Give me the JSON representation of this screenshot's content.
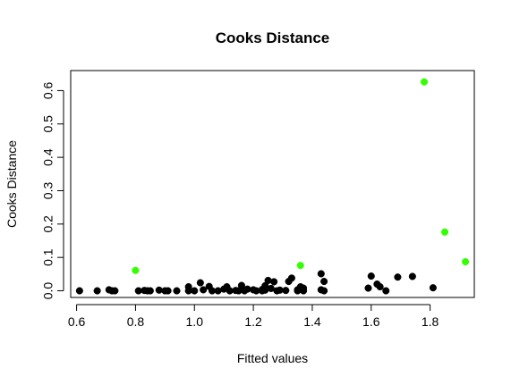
{
  "colors": {
    "normal_point": "#000000",
    "highlight_point": "#33ff00",
    "axis": "#000000",
    "background": "#ffffff"
  },
  "chart_data": {
    "type": "scatter",
    "title": "Cooks Distance",
    "xlabel": "Fitted values",
    "ylabel": "Cooks Distance",
    "xlim": [
      0.58,
      1.95
    ],
    "ylim": [
      -0.02,
      0.66
    ],
    "x_ticks": [
      0.6,
      0.8,
      1.0,
      1.2,
      1.4,
      1.6,
      1.8
    ],
    "x_tick_labels": [
      "0.6",
      "0.8",
      "1.0",
      "1.2",
      "1.4",
      "1.6",
      "1.8"
    ],
    "y_ticks": [
      0.0,
      0.1,
      0.2,
      0.3,
      0.4,
      0.5,
      0.6
    ],
    "y_tick_labels": [
      "0.0",
      "0.1",
      "0.2",
      "0.3",
      "0.4",
      "0.5",
      "0.6"
    ],
    "grid": false,
    "legend": "none",
    "series": [
      {
        "color": "#000000",
        "points": [
          [
            0.61,
            0.0
          ],
          [
            0.67,
            0.0
          ],
          [
            0.71,
            0.003
          ],
          [
            0.73,
            0.0
          ],
          [
            0.72,
            0.0
          ],
          [
            0.81,
            0.0
          ],
          [
            0.83,
            0.001
          ],
          [
            0.85,
            0.0
          ],
          [
            0.84,
            0.0
          ],
          [
            0.88,
            0.002
          ],
          [
            0.9,
            0.0
          ],
          [
            0.91,
            0.0
          ],
          [
            0.94,
            0.0
          ],
          [
            0.98,
            0.0
          ],
          [
            0.98,
            0.012
          ],
          [
            1.0,
            0.0
          ],
          [
            1.02,
            0.024
          ],
          [
            1.03,
            0.003
          ],
          [
            1.05,
            0.013
          ],
          [
            1.06,
            0.0
          ],
          [
            1.08,
            0.0
          ],
          [
            1.1,
            0.005
          ],
          [
            1.11,
            0.012
          ],
          [
            1.12,
            0.0
          ],
          [
            1.14,
            0.001
          ],
          [
            1.16,
            0.016
          ],
          [
            1.17,
            0.0
          ],
          [
            1.18,
            0.005
          ],
          [
            1.2,
            0.003
          ],
          [
            1.21,
            0.0
          ],
          [
            1.23,
            0.004
          ],
          [
            1.24,
            0.015
          ],
          [
            1.25,
            0.031
          ],
          [
            1.26,
            0.007
          ],
          [
            1.27,
            0.027
          ],
          [
            1.28,
            0.0
          ],
          [
            1.29,
            0.002
          ],
          [
            1.31,
            0.001
          ],
          [
            1.32,
            0.028
          ],
          [
            1.33,
            0.038
          ],
          [
            1.35,
            0.003
          ],
          [
            1.36,
            0.012
          ],
          [
            1.37,
            0.008
          ],
          [
            1.37,
            0.0
          ],
          [
            1.35,
            0.0
          ],
          [
            1.43,
            0.051
          ],
          [
            1.44,
            0.028
          ],
          [
            1.43,
            0.003
          ],
          [
            1.44,
            0.0
          ],
          [
            1.6,
            0.044
          ],
          [
            1.59,
            0.008
          ],
          [
            1.62,
            0.02
          ],
          [
            1.63,
            0.012
          ],
          [
            1.65,
            0.0
          ],
          [
            1.69,
            0.041
          ],
          [
            1.74,
            0.043
          ],
          [
            1.81,
            0.009
          ],
          [
            1.23,
            0.0
          ],
          [
            1.24,
            0.002
          ],
          [
            1.15,
            0.0
          ]
        ]
      },
      {
        "color": "#33ff00",
        "points": [
          [
            0.8,
            0.061
          ],
          [
            1.36,
            0.076
          ],
          [
            1.78,
            0.626
          ],
          [
            1.85,
            0.176
          ],
          [
            1.92,
            0.087
          ]
        ]
      }
    ]
  }
}
